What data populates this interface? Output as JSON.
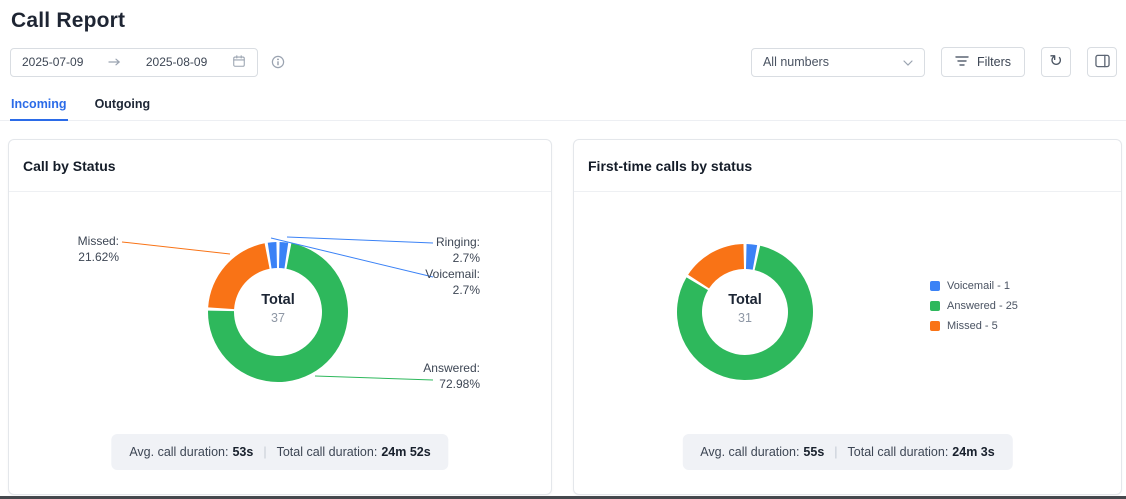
{
  "page": {
    "title": "Call Report"
  },
  "icons": {
    "refresh": "↻"
  },
  "toolbar": {
    "date_from": "2025-07-09",
    "date_to": "2025-08-09",
    "numbers_select_value": "All numbers",
    "filters_label": "Filters"
  },
  "tabs": [
    {
      "label": "Incoming",
      "active": true
    },
    {
      "label": "Outgoing",
      "active": false
    }
  ],
  "cards": [
    {
      "title": "Call by Status",
      "stats": {
        "avg_label": "Avg. call duration:",
        "avg_value": "53s",
        "separator": "|",
        "total_label": "Total call duration:",
        "total_value": "24m 52s"
      }
    },
    {
      "title": "First-time calls by status",
      "stats": {
        "avg_label": "Avg. call duration:",
        "avg_value": "55s",
        "separator": "|",
        "total_label": "Total call duration:",
        "total_value": "24m 3s"
      }
    }
  ],
  "chart_data": [
    {
      "type": "pie",
      "title": "Call by Status",
      "center_label": "Total",
      "total": 37,
      "value_unit": "percent",
      "segments": [
        {
          "label": "Ringing",
          "percent": 2.7,
          "color": "#3b82f6"
        },
        {
          "label": "Answered",
          "percent": 72.98,
          "color": "#2eb85c"
        },
        {
          "label": "Missed",
          "percent": 21.62,
          "color": "#f97316"
        },
        {
          "label": "Voicemail",
          "percent": 2.7,
          "color": "#3b82f6"
        }
      ],
      "callouts": [
        {
          "name": "Missed:",
          "value": "21.62%"
        },
        {
          "name": "Ringing:",
          "value": "2.7%"
        },
        {
          "name": "Voicemail:",
          "value": "2.7%"
        },
        {
          "name": "Answered:",
          "value": "72.98%"
        }
      ]
    },
    {
      "type": "pie",
      "title": "First-time calls by status",
      "center_label": "Total",
      "total": 31,
      "segments": [
        {
          "label": "Voicemail",
          "value": 1,
          "color": "#3b82f6"
        },
        {
          "label": "Answered",
          "value": 25,
          "color": "#2eb85c"
        },
        {
          "label": "Missed",
          "value": 5,
          "color": "#f97316"
        }
      ],
      "legend": [
        {
          "label": "Voicemail - 1",
          "color": "#3b82f6"
        },
        {
          "label": "Answered - 25",
          "color": "#2eb85c"
        },
        {
          "label": "Missed - 5",
          "color": "#f97316"
        }
      ]
    }
  ]
}
